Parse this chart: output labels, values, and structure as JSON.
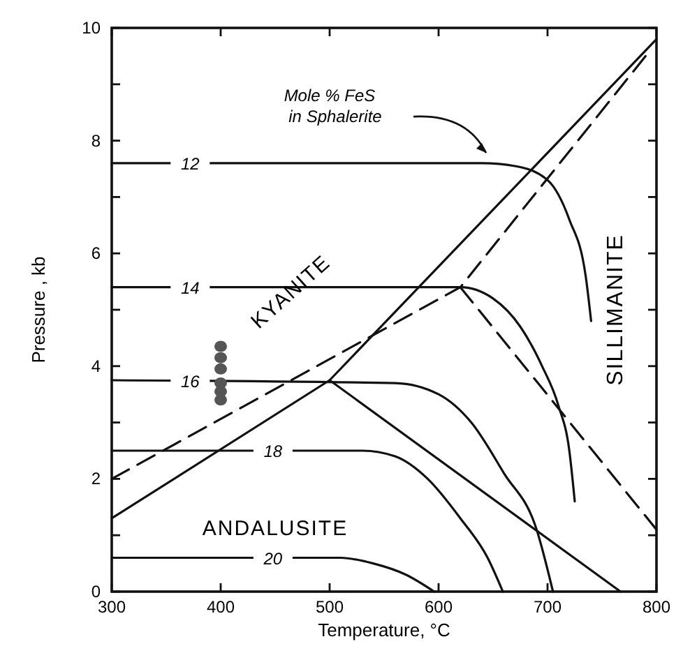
{
  "chart_data": {
    "type": "line",
    "xlabel": "Temperature, °C",
    "ylabel": "Pressure , kb",
    "xlim": [
      300,
      800
    ],
    "ylim": [
      0,
      10
    ],
    "xticks": [
      300,
      400,
      500,
      600,
      700,
      800
    ],
    "yticks": [
      0,
      {
        "value": 1,
        "label": null
      },
      2,
      {
        "value": 3,
        "label": null
      },
      4,
      {
        "value": 5,
        "label": null
      },
      6,
      {
        "value": 7,
        "label": null
      },
      8,
      {
        "value": 9,
        "label": null
      },
      10
    ],
    "grid": false,
    "marker": "none",
    "series": [
      {
        "color": "#111111",
        "line_style": "solid",
        "x": [
          300,
          500,
          800
        ],
        "values": [
          1.3,
          3.75,
          9.8
        ]
      },
      {
        "color": "#111111",
        "line_style": "solid",
        "x": [
          500,
          767
        ],
        "values": [
          3.75,
          0
        ]
      },
      {
        "color": "#111111",
        "line_style": "dashed",
        "x": [
          300,
          620,
          790
        ],
        "values": [
          2.0,
          5.4,
          9.5
        ]
      },
      {
        "color": "#111111",
        "line_style": "dashed",
        "x": [
          620,
          800
        ],
        "values": [
          5.4,
          1.1
        ]
      },
      {
        "name": "12",
        "color": "#111111",
        "line_style": "solid",
        "x": [
          300,
          640,
          670,
          700,
          720,
          735,
          740
        ],
        "values": [
          7.6,
          7.6,
          7.55,
          7.3,
          6.6,
          5.6,
          4.8
        ]
      },
      {
        "name": "14",
        "color": "#111111",
        "line_style": "solid",
        "x": [
          300,
          620,
          650,
          675,
          695,
          710,
          720,
          725
        ],
        "values": [
          5.4,
          5.4,
          5.2,
          4.7,
          4.0,
          3.3,
          2.5,
          1.6
        ]
      },
      {
        "name": "16",
        "color": "#111111",
        "line_style": "solid",
        "x": [
          300,
          560,
          600,
          630,
          660,
          690,
          705
        ],
        "values": [
          3.75,
          3.7,
          3.5,
          3.0,
          2.1,
          1.1,
          0
        ]
      },
      {
        "name": "18",
        "color": "#111111",
        "line_style": "solid",
        "x": [
          300,
          530,
          560,
          590,
          620,
          645,
          659
        ],
        "values": [
          2.5,
          2.5,
          2.4,
          2.0,
          1.3,
          0.6,
          0
        ]
      },
      {
        "name": "20",
        "color": "#111111",
        "line_style": "solid",
        "x": [
          300,
          510,
          540,
          570,
          596
        ],
        "values": [
          0.6,
          0.6,
          0.5,
          0.3,
          0
        ]
      },
      {
        "type": "scatter",
        "marker": "circle",
        "color": "#555555",
        "x": [
          400,
          400,
          400,
          400,
          400,
          400
        ],
        "values": [
          4.35,
          4.15,
          3.95,
          3.7,
          3.55,
          3.4
        ]
      }
    ],
    "annotations": [
      "Mole % FeS in Sphalerite",
      "KYANITE",
      "SILLIMANITE",
      "ANDALUSITE"
    ]
  }
}
